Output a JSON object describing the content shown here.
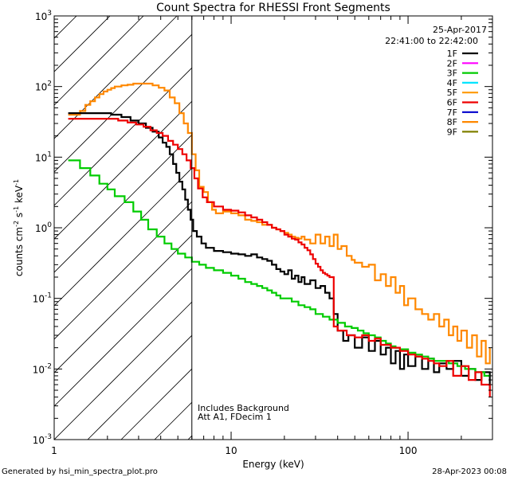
{
  "chart_data": {
    "type": "line",
    "title": "Count Spectra for RHESSI Front Segments",
    "xlabel": "Energy (keV)",
    "ylabel_parts": [
      "counts cm",
      "-2",
      " s",
      "-1",
      " keV",
      "-1"
    ],
    "xscale": "log",
    "yscale": "log",
    "xlim": [
      1.0,
      300
    ],
    "ylim": [
      0.001,
      1000
    ],
    "x_ticks": [
      {
        "v": 1,
        "label": "1"
      },
      {
        "v": 10,
        "label": "10"
      },
      {
        "v": 100,
        "label": "100"
      }
    ],
    "y_ticks": [
      {
        "v": 0.001,
        "base": "10",
        "exp": "-3"
      },
      {
        "v": 0.01,
        "base": "10",
        "exp": "-2"
      },
      {
        "v": 0.1,
        "base": "10",
        "exp": "-1"
      },
      {
        "v": 1,
        "base": "10",
        "exp": "0"
      },
      {
        "v": 10,
        "base": "10",
        "exp": "1"
      },
      {
        "v": 100,
        "base": "10",
        "exp": "2"
      },
      {
        "v": 1000,
        "base": "10",
        "exp": "3"
      }
    ],
    "cutoff_line_keV": 6.0,
    "date": "25-Apr-2017",
    "time_range": "22:41:00 to 22:42:00",
    "annotations": [
      "Includes Background",
      "Att A1, FDecim 1"
    ],
    "legend_position": "top-right",
    "legend": [
      {
        "name": "1F",
        "color": "#000000"
      },
      {
        "name": "2F",
        "color": "#ff00ff"
      },
      {
        "name": "3F",
        "color": "#00cc00"
      },
      {
        "name": "4F",
        "color": "#00e5ff"
      },
      {
        "name": "5F",
        "color": "#ff9900"
      },
      {
        "name": "6F",
        "color": "#ee0000"
      },
      {
        "name": "7F",
        "color": "#0000cc"
      },
      {
        "name": "8F",
        "color": "#ff8800"
      },
      {
        "name": "9F",
        "color": "#808000"
      }
    ],
    "series": [
      {
        "name": "8F",
        "color": "#ff8800",
        "width": 2.2,
        "points": [
          [
            1.2,
            40
          ],
          [
            1.4,
            45
          ],
          [
            1.5,
            55
          ],
          [
            1.6,
            62
          ],
          [
            1.7,
            70
          ],
          [
            1.8,
            78
          ],
          [
            1.9,
            85
          ],
          [
            2.0,
            90
          ],
          [
            2.1,
            95
          ],
          [
            2.2,
            100
          ],
          [
            2.4,
            104
          ],
          [
            2.6,
            106
          ],
          [
            2.8,
            110
          ],
          [
            3.0,
            110
          ],
          [
            3.3,
            110
          ],
          [
            3.6,
            104
          ],
          [
            3.9,
            96
          ],
          [
            4.2,
            88
          ],
          [
            4.5,
            70
          ],
          [
            4.8,
            58
          ],
          [
            5.1,
            42
          ],
          [
            5.4,
            30
          ],
          [
            5.7,
            22
          ],
          [
            6.0,
            11
          ],
          [
            6.3,
            6.5
          ],
          [
            6.6,
            3.8
          ],
          [
            7.0,
            3.2
          ],
          [
            7.4,
            2.3
          ],
          [
            7.8,
            1.8
          ],
          [
            8.2,
            1.6
          ],
          [
            9,
            1.7
          ],
          [
            10,
            1.6
          ],
          [
            11,
            1.5
          ],
          [
            12,
            1.3
          ],
          [
            13,
            1.25
          ],
          [
            14,
            1.2
          ],
          [
            15,
            1.1
          ],
          [
            16,
            1.1
          ],
          [
            17,
            1.0
          ],
          [
            18,
            0.95
          ],
          [
            19,
            0.9
          ],
          [
            20,
            0.85
          ],
          [
            21,
            0.8
          ],
          [
            22,
            0.75
          ],
          [
            23,
            0.72
          ],
          [
            24,
            0.7
          ],
          [
            25,
            0.75
          ],
          [
            26,
            0.68
          ],
          [
            28,
            0.6
          ],
          [
            30,
            0.8
          ],
          [
            32,
            0.6
          ],
          [
            34,
            0.75
          ],
          [
            36,
            0.55
          ],
          [
            38,
            0.8
          ],
          [
            40,
            0.5
          ],
          [
            42,
            0.55
          ],
          [
            45,
            0.4
          ],
          [
            48,
            0.35
          ],
          [
            50,
            0.32
          ],
          [
            55,
            0.28
          ],
          [
            60,
            0.3
          ],
          [
            65,
            0.18
          ],
          [
            70,
            0.22
          ],
          [
            75,
            0.15
          ],
          [
            80,
            0.2
          ],
          [
            85,
            0.12
          ],
          [
            90,
            0.15
          ],
          [
            95,
            0.08
          ],
          [
            100,
            0.1
          ],
          [
            110,
            0.07
          ],
          [
            120,
            0.06
          ],
          [
            130,
            0.05
          ],
          [
            140,
            0.06
          ],
          [
            150,
            0.04
          ],
          [
            160,
            0.05
          ],
          [
            170,
            0.03
          ],
          [
            180,
            0.04
          ],
          [
            190,
            0.025
          ],
          [
            200,
            0.035
          ],
          [
            215,
            0.02
          ],
          [
            230,
            0.03
          ],
          [
            245,
            0.015
          ],
          [
            260,
            0.025
          ],
          [
            275,
            0.012
          ],
          [
            290,
            0.02
          ]
        ]
      },
      {
        "name": "1F",
        "color": "#000000",
        "width": 2.2,
        "points": [
          [
            1.2,
            42
          ],
          [
            2.0,
            42
          ],
          [
            2.1,
            40
          ],
          [
            2.4,
            37
          ],
          [
            2.7,
            33
          ],
          [
            3.0,
            30
          ],
          [
            3.3,
            26
          ],
          [
            3.6,
            23
          ],
          [
            3.9,
            19
          ],
          [
            4.1,
            16
          ],
          [
            4.3,
            14
          ],
          [
            4.5,
            11
          ],
          [
            4.7,
            8
          ],
          [
            4.9,
            6
          ],
          [
            5.1,
            4.5
          ],
          [
            5.3,
            3.5
          ],
          [
            5.5,
            2.5
          ],
          [
            5.7,
            1.8
          ],
          [
            5.9,
            1.3
          ],
          [
            6.1,
            0.9
          ],
          [
            6.4,
            0.75
          ],
          [
            6.8,
            0.6
          ],
          [
            7.2,
            0.52
          ],
          [
            8,
            0.47
          ],
          [
            9,
            0.45
          ],
          [
            10,
            0.43
          ],
          [
            11,
            0.42
          ],
          [
            12,
            0.4
          ],
          [
            13,
            0.42
          ],
          [
            14,
            0.38
          ],
          [
            15,
            0.36
          ],
          [
            16,
            0.34
          ],
          [
            17,
            0.3
          ],
          [
            18,
            0.26
          ],
          [
            19,
            0.24
          ],
          [
            20,
            0.22
          ],
          [
            21,
            0.25
          ],
          [
            22,
            0.19
          ],
          [
            23,
            0.21
          ],
          [
            24,
            0.17
          ],
          [
            25,
            0.2
          ],
          [
            26,
            0.16
          ],
          [
            28,
            0.18
          ],
          [
            30,
            0.14
          ],
          [
            32,
            0.15
          ],
          [
            34,
            0.12
          ],
          [
            36,
            0.1
          ],
          [
            38,
            0.06
          ],
          [
            40,
            0.035
          ],
          [
            43,
            0.025
          ],
          [
            46,
            0.03
          ],
          [
            50,
            0.02
          ],
          [
            55,
            0.028
          ],
          [
            60,
            0.018
          ],
          [
            65,
            0.025
          ],
          [
            70,
            0.016
          ],
          [
            75,
            0.02
          ],
          [
            80,
            0.012
          ],
          [
            85,
            0.018
          ],
          [
            90,
            0.01
          ],
          [
            95,
            0.016
          ],
          [
            100,
            0.011
          ],
          [
            110,
            0.015
          ],
          [
            120,
            0.01
          ],
          [
            130,
            0.014
          ],
          [
            140,
            0.009
          ],
          [
            150,
            0.012
          ],
          [
            165,
            0.01
          ],
          [
            180,
            0.013
          ],
          [
            200,
            0.008
          ],
          [
            220,
            0.01
          ],
          [
            240,
            0.007
          ],
          [
            260,
            0.009
          ],
          [
            290,
            0.005
          ]
        ]
      },
      {
        "name": "3F",
        "color": "#00cc00",
        "width": 2.2,
        "points": [
          [
            1.2,
            9
          ],
          [
            1.4,
            7
          ],
          [
            1.6,
            5.5
          ],
          [
            1.8,
            4.2
          ],
          [
            2.0,
            3.5
          ],
          [
            2.2,
            2.8
          ],
          [
            2.5,
            2.3
          ],
          [
            2.8,
            1.7
          ],
          [
            3.1,
            1.3
          ],
          [
            3.4,
            0.95
          ],
          [
            3.8,
            0.75
          ],
          [
            4.2,
            0.6
          ],
          [
            4.6,
            0.5
          ],
          [
            5.0,
            0.43
          ],
          [
            5.5,
            0.38
          ],
          [
            6.0,
            0.33
          ],
          [
            6.6,
            0.3
          ],
          [
            7.2,
            0.27
          ],
          [
            8,
            0.25
          ],
          [
            9,
            0.23
          ],
          [
            10,
            0.21
          ],
          [
            11,
            0.19
          ],
          [
            12,
            0.17
          ],
          [
            13,
            0.16
          ],
          [
            14,
            0.15
          ],
          [
            15,
            0.14
          ],
          [
            16,
            0.13
          ],
          [
            17,
            0.12
          ],
          [
            18,
            0.11
          ],
          [
            19,
            0.1
          ],
          [
            20,
            0.1
          ],
          [
            22,
            0.09
          ],
          [
            24,
            0.08
          ],
          [
            26,
            0.075
          ],
          [
            28,
            0.07
          ],
          [
            30,
            0.06
          ],
          [
            33,
            0.055
          ],
          [
            36,
            0.05
          ],
          [
            40,
            0.045
          ],
          [
            44,
            0.04
          ],
          [
            48,
            0.038
          ],
          [
            52,
            0.035
          ],
          [
            56,
            0.032
          ],
          [
            60,
            0.03
          ],
          [
            65,
            0.028
          ],
          [
            70,
            0.025
          ],
          [
            75,
            0.023
          ],
          [
            80,
            0.021
          ],
          [
            85,
            0.02
          ],
          [
            90,
            0.019
          ],
          [
            100,
            0.017
          ],
          [
            110,
            0.016
          ],
          [
            120,
            0.015
          ],
          [
            130,
            0.014
          ],
          [
            140,
            0.013
          ],
          [
            150,
            0.013
          ],
          [
            170,
            0.012
          ],
          [
            190,
            0.011
          ],
          [
            210,
            0.01
          ],
          [
            240,
            0.009
          ],
          [
            270,
            0.008
          ],
          [
            290,
            0.008
          ]
        ]
      },
      {
        "name": "6F",
        "color": "#ee0000",
        "width": 2.2,
        "points": [
          [
            1.2,
            35
          ],
          [
            2.0,
            35
          ],
          [
            2.3,
            33
          ],
          [
            2.6,
            31
          ],
          [
            2.9,
            29
          ],
          [
            3.2,
            27
          ],
          [
            3.5,
            24
          ],
          [
            3.8,
            22
          ],
          [
            4.1,
            20
          ],
          [
            4.4,
            17
          ],
          [
            4.7,
            15
          ],
          [
            5.0,
            13
          ],
          [
            5.3,
            11
          ],
          [
            5.6,
            9
          ],
          [
            5.9,
            7
          ],
          [
            6.2,
            5
          ],
          [
            6.5,
            3.6
          ],
          [
            6.9,
            2.7
          ],
          [
            7.3,
            2.3
          ],
          [
            8,
            2.0
          ],
          [
            9,
            1.8
          ],
          [
            10,
            1.75
          ],
          [
            11,
            1.65
          ],
          [
            12,
            1.5
          ],
          [
            13,
            1.4
          ],
          [
            14,
            1.3
          ],
          [
            15,
            1.2
          ],
          [
            16,
            1.1
          ],
          [
            17,
            1.0
          ],
          [
            18,
            0.95
          ],
          [
            19,
            0.9
          ],
          [
            20,
            0.8
          ],
          [
            21,
            0.75
          ],
          [
            22,
            0.7
          ],
          [
            23,
            0.68
          ],
          [
            24,
            0.62
          ],
          [
            25,
            0.58
          ],
          [
            26,
            0.52
          ],
          [
            27,
            0.48
          ],
          [
            28,
            0.42
          ],
          [
            29,
            0.36
          ],
          [
            30,
            0.31
          ],
          [
            31,
            0.28
          ],
          [
            32,
            0.25
          ],
          [
            33,
            0.23
          ],
          [
            34,
            0.22
          ],
          [
            35,
            0.21
          ],
          [
            36,
            0.2
          ],
          [
            37,
            0.2
          ],
          [
            38,
            0.04
          ],
          [
            40,
            0.035
          ],
          [
            45,
            0.03
          ],
          [
            50,
            0.028
          ],
          [
            55,
            0.03
          ],
          [
            60,
            0.025
          ],
          [
            65,
            0.027
          ],
          [
            70,
            0.022
          ],
          [
            80,
            0.02
          ],
          [
            90,
            0.018
          ],
          [
            100,
            0.016
          ],
          [
            110,
            0.015
          ],
          [
            120,
            0.014
          ],
          [
            130,
            0.013
          ],
          [
            140,
            0.012
          ],
          [
            150,
            0.011
          ],
          [
            165,
            0.013
          ],
          [
            180,
            0.008
          ],
          [
            200,
            0.011
          ],
          [
            220,
            0.007
          ],
          [
            240,
            0.009
          ],
          [
            260,
            0.006
          ],
          [
            290,
            0.004
          ]
        ]
      }
    ]
  },
  "footer": {
    "generated_by": "Generated by hsi_min_spectra_plot.pro",
    "timestamp": "28-Apr-2023 00:08"
  }
}
